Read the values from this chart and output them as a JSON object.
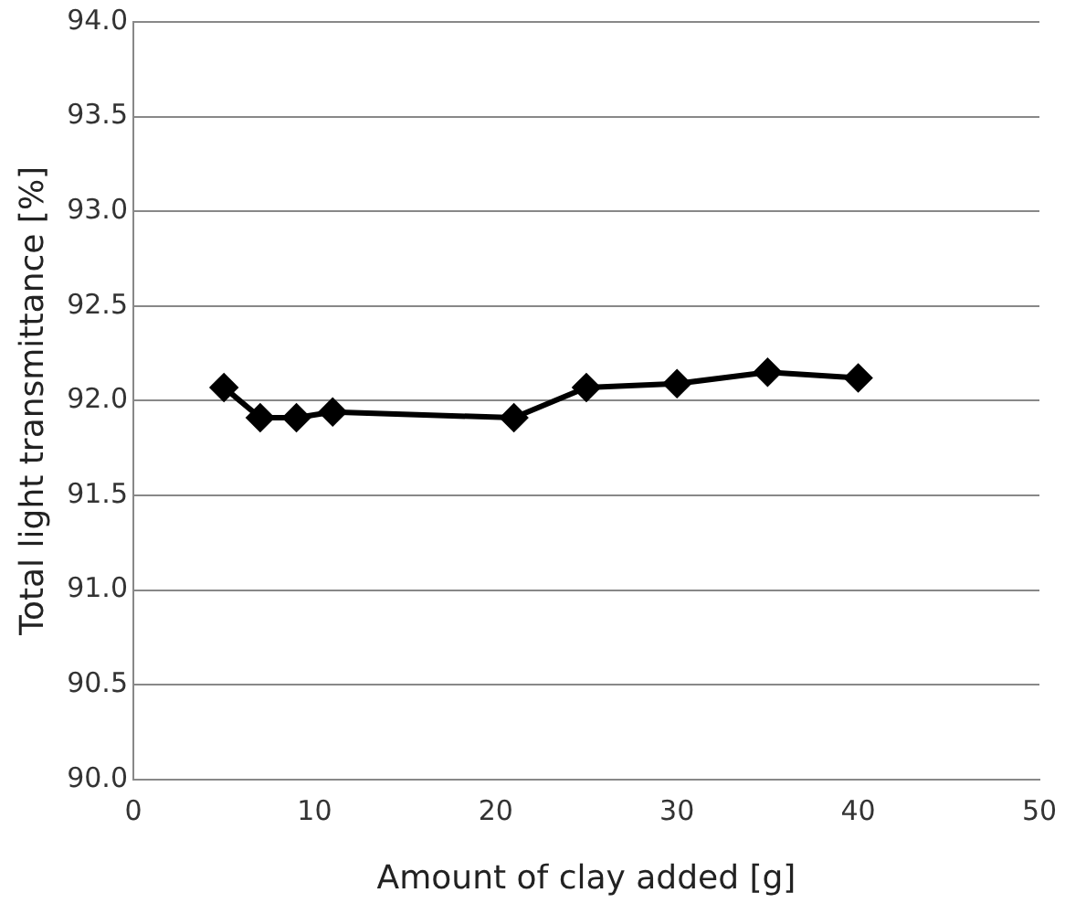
{
  "chart_data": {
    "type": "line",
    "xlabel": "Amount of clay added [g]",
    "ylabel": "Total light transmittance [%]",
    "x": [
      5,
      7,
      9,
      11,
      21,
      25,
      30,
      35,
      40
    ],
    "series": [
      {
        "color": "#000000",
        "values": [
          92.07,
          91.91,
          91.91,
          91.94,
          91.91,
          92.07,
          92.09,
          92.15,
          92.12
        ]
      }
    ],
    "xlim": [
      0,
      50
    ],
    "xticks": [
      0,
      10,
      20,
      30,
      40,
      50
    ],
    "ylim": [
      90,
      94
    ],
    "yticks": [
      {
        "value": 90,
        "label": "90.0"
      },
      {
        "value": 90.5,
        "label": "90.5"
      },
      {
        "value": 91,
        "label": "91.0"
      },
      {
        "value": 91.5,
        "label": "91.5"
      },
      {
        "value": 92,
        "label": "92.0"
      },
      {
        "value": 92.5,
        "label": "92.5"
      },
      {
        "value": 93,
        "label": "93.0"
      },
      {
        "value": 93.5,
        "label": "93.5"
      },
      {
        "value": 94,
        "label": "94.0"
      }
    ],
    "grid": "y",
    "legend": false,
    "marker": "diamond",
    "line_style": "solid"
  }
}
